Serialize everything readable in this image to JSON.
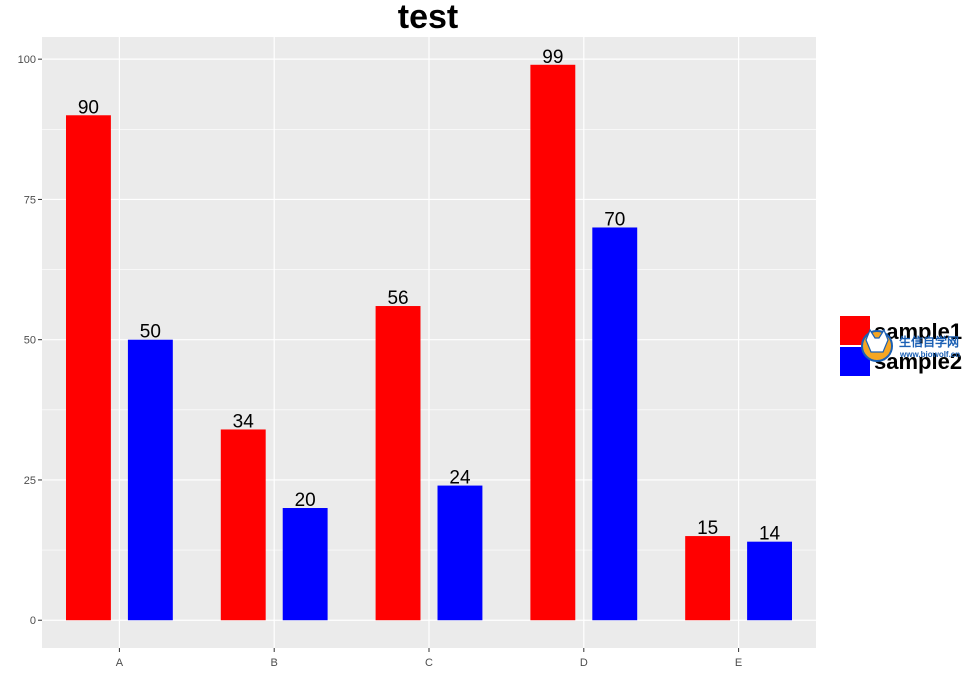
{
  "chart_data": {
    "type": "bar",
    "title": "test",
    "xlabel": "",
    "ylabel": "",
    "categories": [
      "A",
      "B",
      "C",
      "D",
      "E"
    ],
    "series": [
      {
        "name": "sample1",
        "color": "#ff0000",
        "values": [
          90,
          34,
          56,
          99,
          15
        ]
      },
      {
        "name": "sample2",
        "color": "#0000ff",
        "values": [
          50,
          20,
          24,
          70,
          14
        ]
      }
    ],
    "ylim": [
      -4.95,
      103.95
    ],
    "yticks": [
      0,
      25,
      50,
      75,
      100
    ],
    "grid": true,
    "panel_background": "#ebebeb",
    "legend_position": "right"
  },
  "watermark": {
    "name": "生信自学网",
    "url": "www.biowolf.cn",
    "icon": "fox-icon"
  }
}
